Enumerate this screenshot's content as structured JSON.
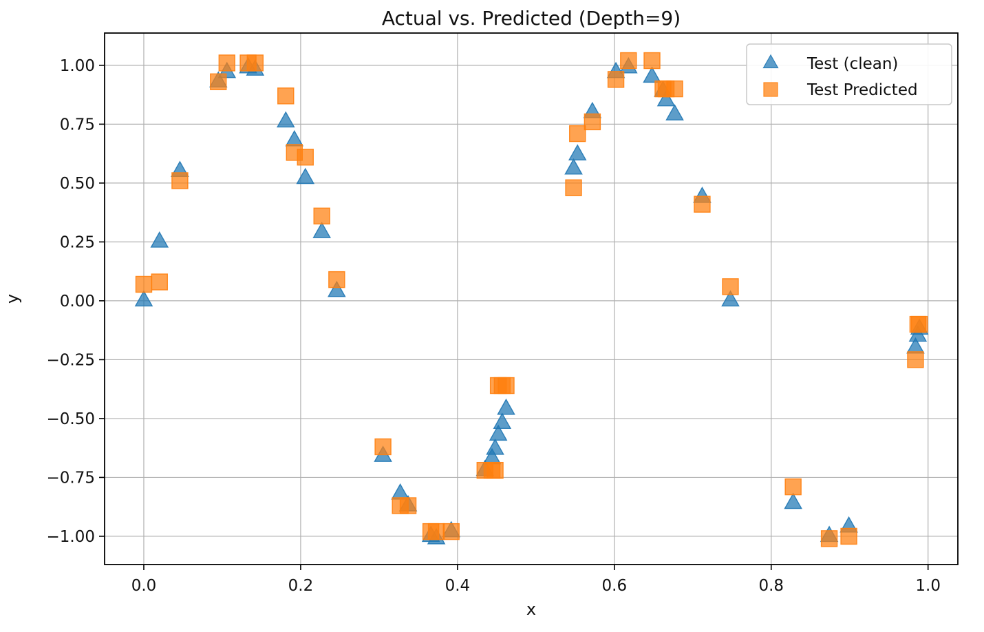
{
  "title": "Actual vs. Predicted (Depth=9)",
  "axes": {
    "xlabel": "x",
    "ylabel": "y"
  },
  "legend": {
    "position": "upper right",
    "items": [
      {
        "label": "Test (clean)",
        "marker": "triangle",
        "color": "#1f77b4"
      },
      {
        "label": "Test Predicted",
        "marker": "square",
        "color": "#ff7f0e"
      }
    ]
  },
  "colors": {
    "actual": "#1f77b4",
    "predicted": "#ff7f0e",
    "grid": "#b0b0b0",
    "spine": "#000000",
    "legend_border": "#c8c8c8",
    "background": "#ffffff"
  },
  "chart_data": {
    "type": "scatter",
    "title": "Actual vs. Predicted (Depth=9)",
    "xlabel": "x",
    "ylabel": "y",
    "grid": true,
    "legend_position": "upper right",
    "marker_alpha": 0.72,
    "xlim": [
      -0.05,
      1.038
    ],
    "ylim": [
      -1.12,
      1.137
    ],
    "xticks": [
      0.0,
      0.2,
      0.4,
      0.6,
      0.8,
      1.0
    ],
    "yticks": [
      1.0,
      0.75,
      0.5,
      0.25,
      0.0,
      -0.25,
      -0.5,
      -0.75,
      -1.0
    ],
    "x": [
      0.0,
      0.02,
      0.046,
      0.095,
      0.106,
      0.133,
      0.142,
      0.181,
      0.192,
      0.206,
      0.227,
      0.246,
      0.305,
      0.327,
      0.337,
      0.366,
      0.373,
      0.392,
      0.435,
      0.444,
      0.448,
      0.452,
      0.457,
      0.462,
      0.548,
      0.553,
      0.572,
      0.602,
      0.618,
      0.648,
      0.662,
      0.666,
      0.677,
      0.712,
      0.748,
      0.828,
      0.874,
      0.899,
      0.984,
      0.987,
      0.989
    ],
    "series": [
      {
        "name": "Test (clean)",
        "marker": "triangle",
        "color": "#1f77b4",
        "values": [
          0.0,
          0.25,
          0.55,
          0.93,
          0.97,
          0.99,
          0.98,
          0.76,
          0.68,
          0.52,
          0.29,
          0.04,
          -0.66,
          -0.82,
          -0.87,
          -1.0,
          -1.01,
          -0.98,
          -0.72,
          -0.67,
          -0.63,
          -0.57,
          -0.52,
          -0.46,
          0.56,
          0.62,
          0.8,
          0.97,
          0.99,
          0.95,
          0.89,
          0.85,
          0.79,
          0.44,
          0.0,
          -0.86,
          -1.0,
          -0.96,
          -0.2,
          -0.15,
          -0.12
        ]
      },
      {
        "name": "Test Predicted",
        "marker": "square",
        "color": "#ff7f0e",
        "values": [
          0.07,
          0.08,
          0.51,
          0.93,
          1.01,
          1.01,
          1.01,
          0.87,
          0.63,
          0.61,
          0.36,
          0.09,
          -0.62,
          -0.87,
          -0.87,
          -0.98,
          -0.98,
          -0.98,
          -0.72,
          -0.72,
          -0.72,
          -0.36,
          -0.36,
          -0.36,
          0.48,
          0.71,
          0.76,
          0.94,
          1.02,
          1.02,
          0.9,
          0.9,
          0.9,
          0.41,
          0.06,
          -0.79,
          -1.01,
          -1.0,
          -0.25,
          -0.1,
          -0.1
        ]
      }
    ]
  }
}
